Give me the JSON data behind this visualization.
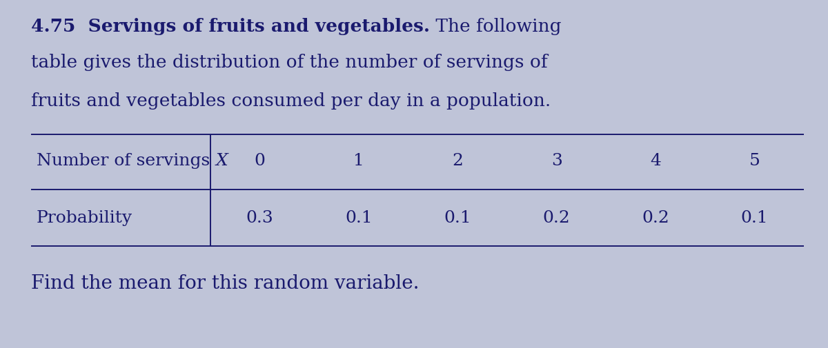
{
  "title_bold": "4.75  Servings of fruits and vegetables.",
  "title_normal_suffix": " The following",
  "title_line2": "table gives the distribution of the number of servings of",
  "title_line3": "fruits and vegetables consumed per day in a population.",
  "row1_label_main": "Number of servings ",
  "row1_label_X": "X",
  "row1_values": [
    "0",
    "1",
    "2",
    "3",
    "4",
    "5"
  ],
  "row2_label": "Probability",
  "row2_values": [
    "0.3",
    "0.1",
    "0.1",
    "0.2",
    "0.2",
    "0.1"
  ],
  "footer_text": "Find the mean for this random variable.",
  "bg_color": "#bfc4d8",
  "text_color": "#1a1a6e",
  "table_line_color": "#1a1a6e",
  "title_fontsize": 19,
  "table_fontsize": 18,
  "footer_fontsize": 20,
  "fig_width": 12.0,
  "fig_height": 5.06,
  "dpi": 100
}
